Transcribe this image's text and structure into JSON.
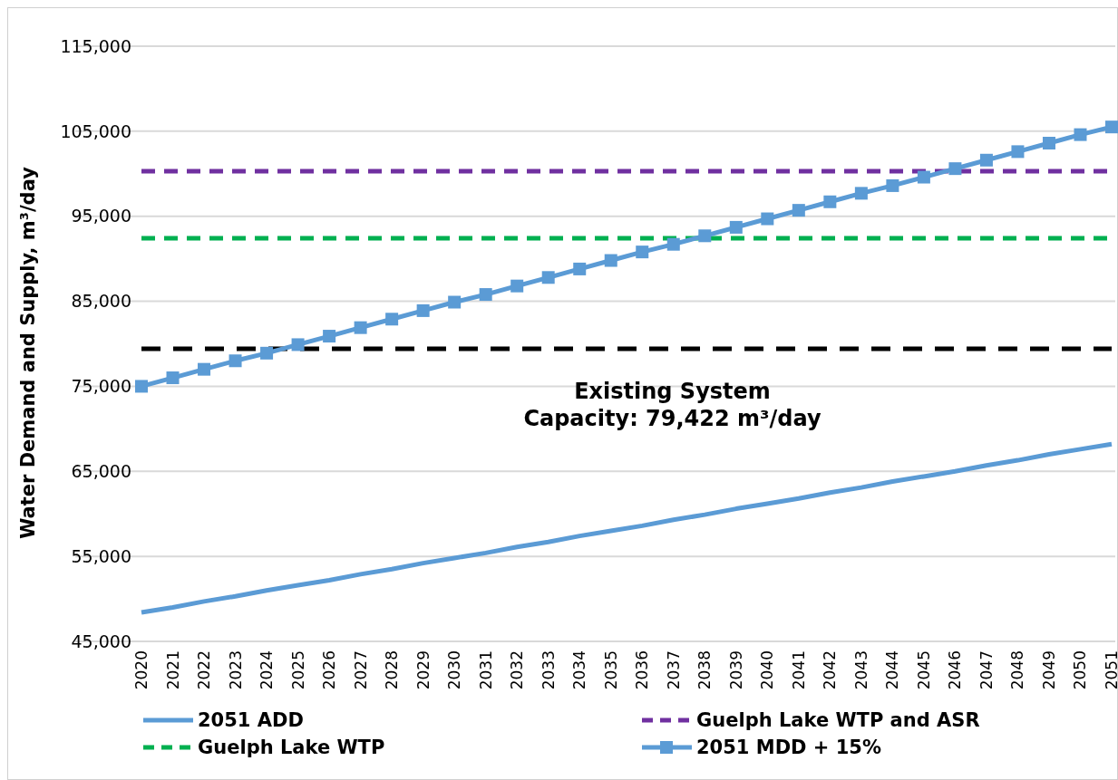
{
  "chart_data": {
    "type": "line",
    "ylabel": "Water Demand and Supply, m³/day",
    "categories": [
      "2020",
      "2021",
      "2022",
      "2023",
      "2024",
      "2025",
      "2026",
      "2027",
      "2028",
      "2029",
      "2030",
      "2031",
      "2032",
      "2033",
      "2034",
      "2035",
      "2036",
      "2037",
      "2038",
      "2039",
      "2040",
      "2041",
      "2042",
      "2043",
      "2044",
      "2045",
      "2046",
      "2047",
      "2048",
      "2049",
      "2050",
      "2051"
    ],
    "series": [
      {
        "name": "2051 ADD",
        "color": "#5b9bd5",
        "marker": "none",
        "line_style": "solid",
        "values": [
          48400,
          49000,
          49700,
          50300,
          51000,
          51600,
          52200,
          52900,
          53500,
          54200,
          54800,
          55400,
          56100,
          56700,
          57400,
          58000,
          58600,
          59300,
          59900,
          60600,
          61200,
          61800,
          62500,
          63100,
          63800,
          64400,
          65000,
          65700,
          66300,
          67000,
          67600,
          68200
        ]
      },
      {
        "name": "Guelph Lake WTP and ASR",
        "color": "#7030a0",
        "marker": "none",
        "line_style": "dashed",
        "values": [
          100300,
          100300,
          100300,
          100300,
          100300,
          100300,
          100300,
          100300,
          100300,
          100300,
          100300,
          100300,
          100300,
          100300,
          100300,
          100300,
          100300,
          100300,
          100300,
          100300,
          100300,
          100300,
          100300,
          100300,
          100300,
          100300,
          100300,
          100300,
          100300,
          100300,
          100300,
          100300
        ]
      },
      {
        "name": "Guelph Lake WTP",
        "color": "#00b050",
        "marker": "none",
        "line_style": "dashed",
        "values": [
          92400,
          92400,
          92400,
          92400,
          92400,
          92400,
          92400,
          92400,
          92400,
          92400,
          92400,
          92400,
          92400,
          92400,
          92400,
          92400,
          92400,
          92400,
          92400,
          92400,
          92400,
          92400,
          92400,
          92400,
          92400,
          92400,
          92400,
          92400,
          92400,
          92400,
          92400,
          92400
        ]
      },
      {
        "name": "2051 MDD + 15%",
        "color": "#5b9bd5",
        "marker": "square",
        "line_style": "solid",
        "values": [
          75000,
          76000,
          77000,
          78000,
          78900,
          79900,
          80900,
          81900,
          82900,
          83900,
          84900,
          85800,
          86800,
          87800,
          88800,
          89800,
          90800,
          91700,
          92700,
          93700,
          94700,
          95700,
          96700,
          97700,
          98600,
          99600,
          100600,
          101600,
          102600,
          103600,
          104600,
          105500
        ]
      }
    ],
    "ref_lines": [
      {
        "axis": "y",
        "value": 79422,
        "label": "Existing System Capacity: 79,422 m³/day",
        "color": "#000000",
        "line_style": "dashed"
      }
    ],
    "ylim": [
      45000,
      115000
    ],
    "yticks": [
      {
        "value": 45000,
        "label": "45,000"
      },
      {
        "value": 55000,
        "label": "55,000"
      },
      {
        "value": 65000,
        "label": "65,000"
      },
      {
        "value": 75000,
        "label": "75,000"
      },
      {
        "value": 85000,
        "label": "85,000"
      },
      {
        "value": 95000,
        "label": "95,000"
      },
      {
        "value": 105000,
        "label": "105,000"
      },
      {
        "value": 115000,
        "label": "115,000"
      }
    ],
    "grid": "y",
    "legend": "bottom"
  }
}
